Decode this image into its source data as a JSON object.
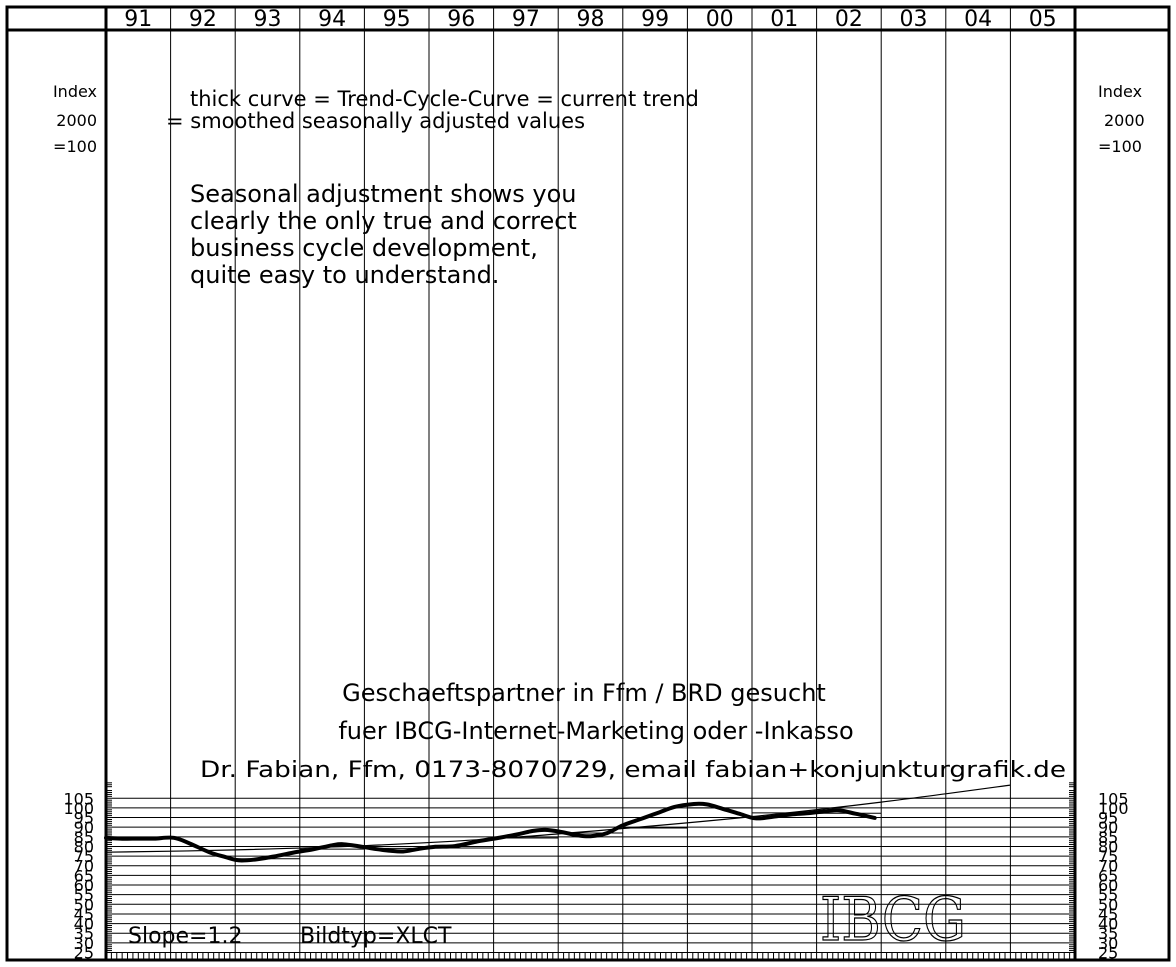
{
  "chart_data": {
    "type": "line",
    "years": [
      "91",
      "92",
      "93",
      "94",
      "95",
      "96",
      "97",
      "98",
      "99",
      "00",
      "01",
      "02",
      "03",
      "04",
      "05"
    ],
    "y_ticks": [
      105,
      100,
      95,
      90,
      85,
      80,
      75,
      70,
      65,
      60,
      55,
      50,
      45,
      40,
      35,
      30,
      25
    ],
    "ylim": [
      25,
      114
    ],
    "y_label_lines": [
      "Index",
      "2000",
      "=100"
    ],
    "annual_levels": [
      {
        "year": 1992,
        "value": 80.0
      },
      {
        "year": 1993,
        "value": 73.6
      },
      {
        "year": 1994,
        "value": 78.6
      },
      {
        "year": 1995,
        "value": 79.0
      },
      {
        "year": 1996,
        "value": 79.2
      },
      {
        "year": 1997,
        "value": 84.4
      },
      {
        "year": 1998,
        "value": 87.0
      },
      {
        "year": 1999,
        "value": 89.6
      },
      {
        "year": 2000,
        "value": 100.0
      },
      {
        "year": 2001,
        "value": 97.4
      },
      {
        "year": 2002,
        "value": 97.2
      }
    ],
    "trend_cycle_curve": [
      {
        "x": 1991.0,
        "y": 84.5
      },
      {
        "x": 1991.25,
        "y": 84.0
      },
      {
        "x": 1991.5,
        "y": 84.1
      },
      {
        "x": 1991.75,
        "y": 84.1
      },
      {
        "x": 1992.05,
        "y": 84.5
      },
      {
        "x": 1992.3,
        "y": 81.5
      },
      {
        "x": 1992.6,
        "y": 77.0
      },
      {
        "x": 1992.85,
        "y": 74.5
      },
      {
        "x": 1993.05,
        "y": 72.8
      },
      {
        "x": 1993.3,
        "y": 73.2
      },
      {
        "x": 1993.6,
        "y": 74.8
      },
      {
        "x": 1993.9,
        "y": 76.8
      },
      {
        "x": 1994.2,
        "y": 78.5
      },
      {
        "x": 1994.5,
        "y": 80.6
      },
      {
        "x": 1994.65,
        "y": 81.2
      },
      {
        "x": 1994.9,
        "y": 80.2
      },
      {
        "x": 1995.15,
        "y": 78.8
      },
      {
        "x": 1995.4,
        "y": 77.8
      },
      {
        "x": 1995.6,
        "y": 77.4
      },
      {
        "x": 1995.85,
        "y": 78.8
      },
      {
        "x": 1996.1,
        "y": 79.8
      },
      {
        "x": 1996.4,
        "y": 80.2
      },
      {
        "x": 1996.75,
        "y": 82.6
      },
      {
        "x": 1997.1,
        "y": 84.6
      },
      {
        "x": 1997.4,
        "y": 86.5
      },
      {
        "x": 1997.6,
        "y": 88.0
      },
      {
        "x": 1997.8,
        "y": 88.6
      },
      {
        "x": 1998.05,
        "y": 87.5
      },
      {
        "x": 1998.3,
        "y": 85.8
      },
      {
        "x": 1998.5,
        "y": 85.3
      },
      {
        "x": 1998.75,
        "y": 86.8
      },
      {
        "x": 1999.0,
        "y": 91.0
      },
      {
        "x": 1999.3,
        "y": 94.5
      },
      {
        "x": 1999.55,
        "y": 97.5
      },
      {
        "x": 1999.8,
        "y": 100.5
      },
      {
        "x": 2000.1,
        "y": 102.0
      },
      {
        "x": 2000.3,
        "y": 101.8
      },
      {
        "x": 2000.55,
        "y": 99.5
      },
      {
        "x": 2000.8,
        "y": 97.0
      },
      {
        "x": 2001.05,
        "y": 94.6
      },
      {
        "x": 2001.3,
        "y": 95.3
      },
      {
        "x": 2001.6,
        "y": 96.6
      },
      {
        "x": 2001.85,
        "y": 97.2
      },
      {
        "x": 2002.15,
        "y": 98.3
      },
      {
        "x": 2002.35,
        "y": 98.7
      },
      {
        "x": 2002.6,
        "y": 97.0
      },
      {
        "x": 2002.9,
        "y": 94.8
      }
    ],
    "long_term_trend": [
      {
        "x": 1991.0,
        "y": 77.0
      },
      {
        "x": 1993.0,
        "y": 78.2
      },
      {
        "x": 1995.0,
        "y": 80.4
      },
      {
        "x": 1997.0,
        "y": 84.0
      },
      {
        "x": 1999.0,
        "y": 89.3
      },
      {
        "x": 2001.0,
        "y": 95.5
      },
      {
        "x": 2003.0,
        "y": 103.0
      },
      {
        "x": 2005.0,
        "y": 111.8
      }
    ],
    "annotations": {
      "legend_line1": "thick curve = Trend-Cycle-Curve = current trend",
      "legend_line2": "= smoothed seasonally adjusted values",
      "claim_lines": [
        "Seasonal adjustment shows you",
        "clearly the only true and correct",
        "business cycle development,",
        "quite easy to understand."
      ],
      "ad_line1": "Geschaeftspartner in Ffm / BRD gesucht",
      "ad_line2": "fuer IBCG-Internet-Marketing oder -Inkasso",
      "ad_line3": "Dr. Fabian, Ffm, 0173-8070729, email fabian+konjunkturgrafik.de",
      "slope_text": "Slope=1.2",
      "bildtyp_text": "Bildtyp=XLCT",
      "logo_text": "IBCG"
    }
  }
}
